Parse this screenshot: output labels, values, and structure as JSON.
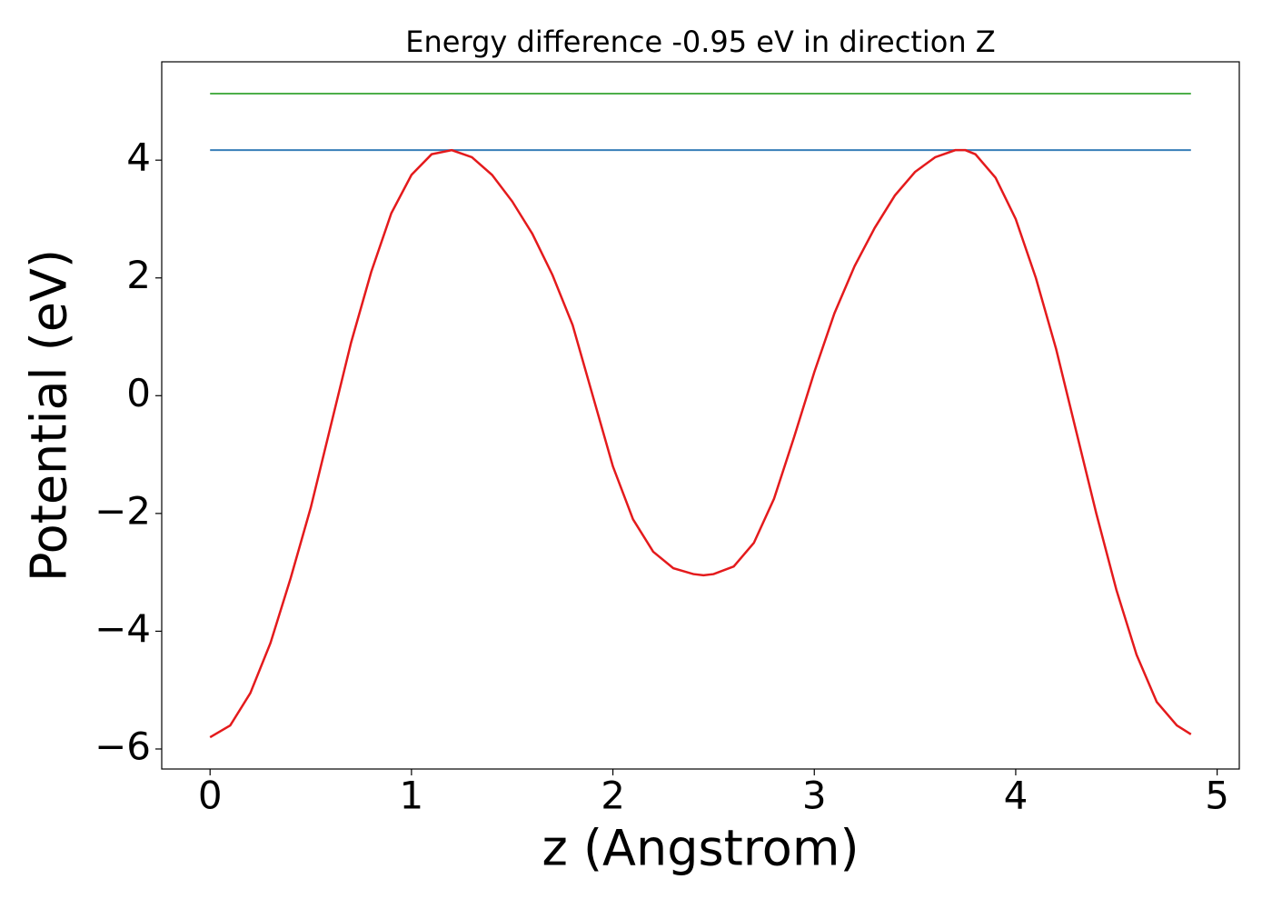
{
  "chart_data": {
    "type": "line",
    "title": "Energy difference -0.95 eV in direction Z",
    "xlabel": "z (Angstrom)",
    "ylabel": "Potential (eV)",
    "xlim": [
      -0.24,
      5.11
    ],
    "ylim": [
      -6.34,
      5.67
    ],
    "xticks": [
      0,
      1,
      2,
      3,
      4,
      5
    ],
    "yticks": [
      {
        "value": -6,
        "label": "−6"
      },
      {
        "value": -4,
        "label": "−4"
      },
      {
        "value": -2,
        "label": "−2"
      },
      0,
      2,
      4
    ],
    "grid": false,
    "series": [
      {
        "color": "#4daf4a",
        "x": [
          0,
          4.87
        ],
        "values": [
          5.13,
          5.13
        ]
      },
      {
        "color": "#377eb8",
        "x": [
          0,
          4.87
        ],
        "values": [
          4.17,
          4.17
        ]
      },
      {
        "color": "#e41a1c",
        "x": [
          0,
          0.1,
          0.2,
          0.3,
          0.4,
          0.5,
          0.6,
          0.7,
          0.8,
          0.9,
          1.0,
          1.1,
          1.2,
          1.3,
          1.4,
          1.5,
          1.6,
          1.7,
          1.8,
          1.9,
          2.0,
          2.1,
          2.2,
          2.3,
          2.4,
          2.45,
          2.5,
          2.6,
          2.7,
          2.8,
          2.9,
          3.0,
          3.1,
          3.2,
          3.3,
          3.4,
          3.5,
          3.6,
          3.7,
          3.75,
          3.8,
          3.9,
          4.0,
          4.1,
          4.2,
          4.3,
          4.4,
          4.5,
          4.6,
          4.7,
          4.8,
          4.87
        ],
        "values": [
          -5.8,
          -5.6,
          -5.05,
          -4.2,
          -3.1,
          -1.9,
          -0.5,
          0.9,
          2.1,
          3.1,
          3.75,
          4.1,
          4.17,
          4.05,
          3.75,
          3.3,
          2.75,
          2.05,
          1.2,
          0.0,
          -1.2,
          -2.1,
          -2.65,
          -2.93,
          -3.03,
          -3.05,
          -3.03,
          -2.9,
          -2.5,
          -1.75,
          -0.7,
          0.4,
          1.4,
          2.2,
          2.85,
          3.4,
          3.8,
          4.05,
          4.17,
          4.17,
          4.1,
          3.7,
          3.0,
          2.0,
          0.8,
          -0.6,
          -2.0,
          -3.3,
          -4.4,
          -5.2,
          -5.6,
          -5.75
        ]
      }
    ]
  }
}
